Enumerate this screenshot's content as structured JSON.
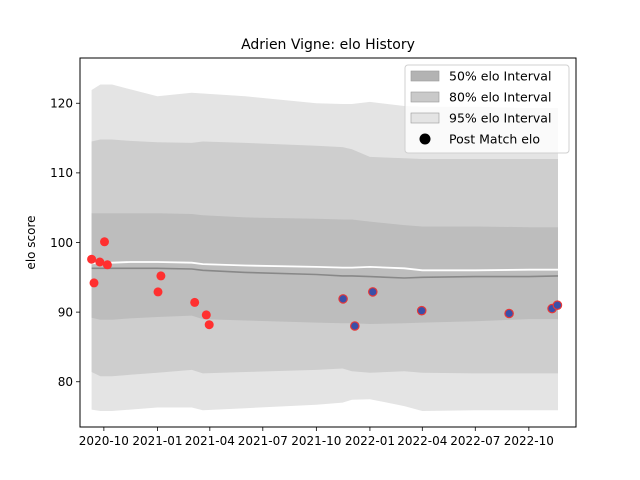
{
  "chart_data": {
    "type": "scatter",
    "title": "Adrien Vigne: elo History",
    "xlabel": "",
    "ylabel": "elo score",
    "xlim": [
      "2020-08-21",
      "2022-12-21"
    ],
    "ylim": [
      73.5,
      126.5
    ],
    "x_ticks": [
      "2020-10",
      "2021-01",
      "2021-04",
      "2021-07",
      "2021-10",
      "2022-01",
      "2022-04",
      "2022-07",
      "2022-10"
    ],
    "x_tick_dates": [
      "2020-10-01",
      "2021-01-01",
      "2021-04-01",
      "2021-07-01",
      "2021-10-01",
      "2022-01-01",
      "2022-04-01",
      "2022-07-01",
      "2022-10-01"
    ],
    "y_ticks": [
      80,
      90,
      100,
      110,
      120
    ],
    "grid": false,
    "legend_placement": "top-right",
    "legend": [
      {
        "label": "50% elo Interval",
        "kind": "patch",
        "color": "#b3b3b3"
      },
      {
        "label": "80% elo Interval",
        "kind": "patch",
        "color": "#c9c9c9"
      },
      {
        "label": "95% elo Interval",
        "kind": "patch",
        "color": "#e4e4e4"
      },
      {
        "label": "Post Match elo",
        "kind": "marker",
        "color": "#000000"
      }
    ],
    "colors": {
      "band95": "#e4e4e4",
      "band80": "#cecece",
      "band50": "#bdbdbd",
      "median_line": "#888888",
      "mean_line": "#ffffff",
      "point_early": "#ff3030",
      "point_late_fill": "#3a4fa8",
      "point_late_edge": "#e83838"
    },
    "bands": {
      "dates": [
        "2020-09-10",
        "2020-09-25",
        "2020-10-15",
        "2020-11-15",
        "2021-01-01",
        "2021-03-01",
        "2021-03-20",
        "2021-06-01",
        "2021-10-01",
        "2021-11-15",
        "2021-12-01",
        "2022-01-01",
        "2022-03-01",
        "2022-04-01",
        "2022-07-01",
        "2022-10-01",
        "2022-11-20"
      ],
      "p95_upper": [
        121.9,
        122.7,
        122.7,
        122.0,
        121.0,
        121.5,
        121.4,
        121.0,
        120.0,
        119.9,
        119.9,
        120.2,
        119.6,
        119.5,
        119.5,
        119.3,
        119.3
      ],
      "p80_upper": [
        114.5,
        114.8,
        114.8,
        114.6,
        114.4,
        114.3,
        114.5,
        114.3,
        113.9,
        113.7,
        113.4,
        112.3,
        112.1,
        112.0,
        112.0,
        112.0,
        112.0
      ],
      "p50_upper": [
        104.2,
        104.2,
        104.2,
        104.2,
        104.2,
        104.1,
        103.9,
        103.6,
        103.4,
        103.3,
        103.3,
        103.0,
        102.5,
        102.3,
        102.3,
        102.2,
        102.2
      ],
      "p50_lower": [
        89.2,
        88.9,
        88.9,
        89.1,
        89.3,
        89.5,
        89.0,
        88.8,
        88.5,
        88.4,
        88.4,
        88.3,
        88.4,
        88.5,
        88.7,
        89.0,
        89.0
      ],
      "p80_lower": [
        81.4,
        80.8,
        80.8,
        81.0,
        81.3,
        81.7,
        81.2,
        81.4,
        81.7,
        81.9,
        81.5,
        81.3,
        81.5,
        81.3,
        81.2,
        81.2,
        81.2
      ],
      "p95_lower": [
        76.0,
        75.8,
        75.8,
        76.0,
        76.3,
        76.3,
        75.9,
        76.2,
        76.7,
        77.0,
        77.4,
        77.5,
        76.5,
        75.8,
        75.9,
        75.9,
        75.9
      ],
      "median": [
        96.3,
        96.3,
        96.3,
        96.3,
        96.3,
        96.2,
        96.0,
        95.7,
        95.4,
        95.2,
        95.2,
        95.1,
        94.9,
        95.0,
        95.1,
        95.1,
        95.2
      ],
      "mean": [
        97.0,
        97.1,
        97.1,
        97.2,
        97.2,
        97.1,
        96.9,
        96.7,
        96.5,
        96.4,
        96.4,
        96.5,
        96.3,
        96.0,
        96.0,
        96.1,
        96.1
      ]
    },
    "series": [
      {
        "name": "Post Match elo",
        "points": [
          {
            "x": "2020-09-10",
            "y": 97.6,
            "group": "early"
          },
          {
            "x": "2020-09-14",
            "y": 94.2,
            "group": "early"
          },
          {
            "x": "2020-09-24",
            "y": 97.2,
            "group": "early"
          },
          {
            "x": "2020-10-02",
            "y": 100.1,
            "group": "early"
          },
          {
            "x": "2020-10-07",
            "y": 96.8,
            "group": "early"
          },
          {
            "x": "2021-01-02",
            "y": 92.9,
            "group": "early"
          },
          {
            "x": "2021-01-07",
            "y": 95.2,
            "group": "early"
          },
          {
            "x": "2021-03-06",
            "y": 91.4,
            "group": "early"
          },
          {
            "x": "2021-03-26",
            "y": 89.6,
            "group": "early"
          },
          {
            "x": "2021-03-31",
            "y": 88.2,
            "group": "early"
          },
          {
            "x": "2021-11-16",
            "y": 91.9,
            "group": "late"
          },
          {
            "x": "2021-12-06",
            "y": 88.0,
            "group": "late"
          },
          {
            "x": "2022-01-06",
            "y": 92.9,
            "group": "late"
          },
          {
            "x": "2022-03-31",
            "y": 90.2,
            "group": "late"
          },
          {
            "x": "2022-08-28",
            "y": 89.8,
            "group": "late"
          },
          {
            "x": "2022-11-10",
            "y": 90.5,
            "group": "late"
          },
          {
            "x": "2022-11-19",
            "y": 91.0,
            "group": "late"
          }
        ]
      }
    ]
  }
}
